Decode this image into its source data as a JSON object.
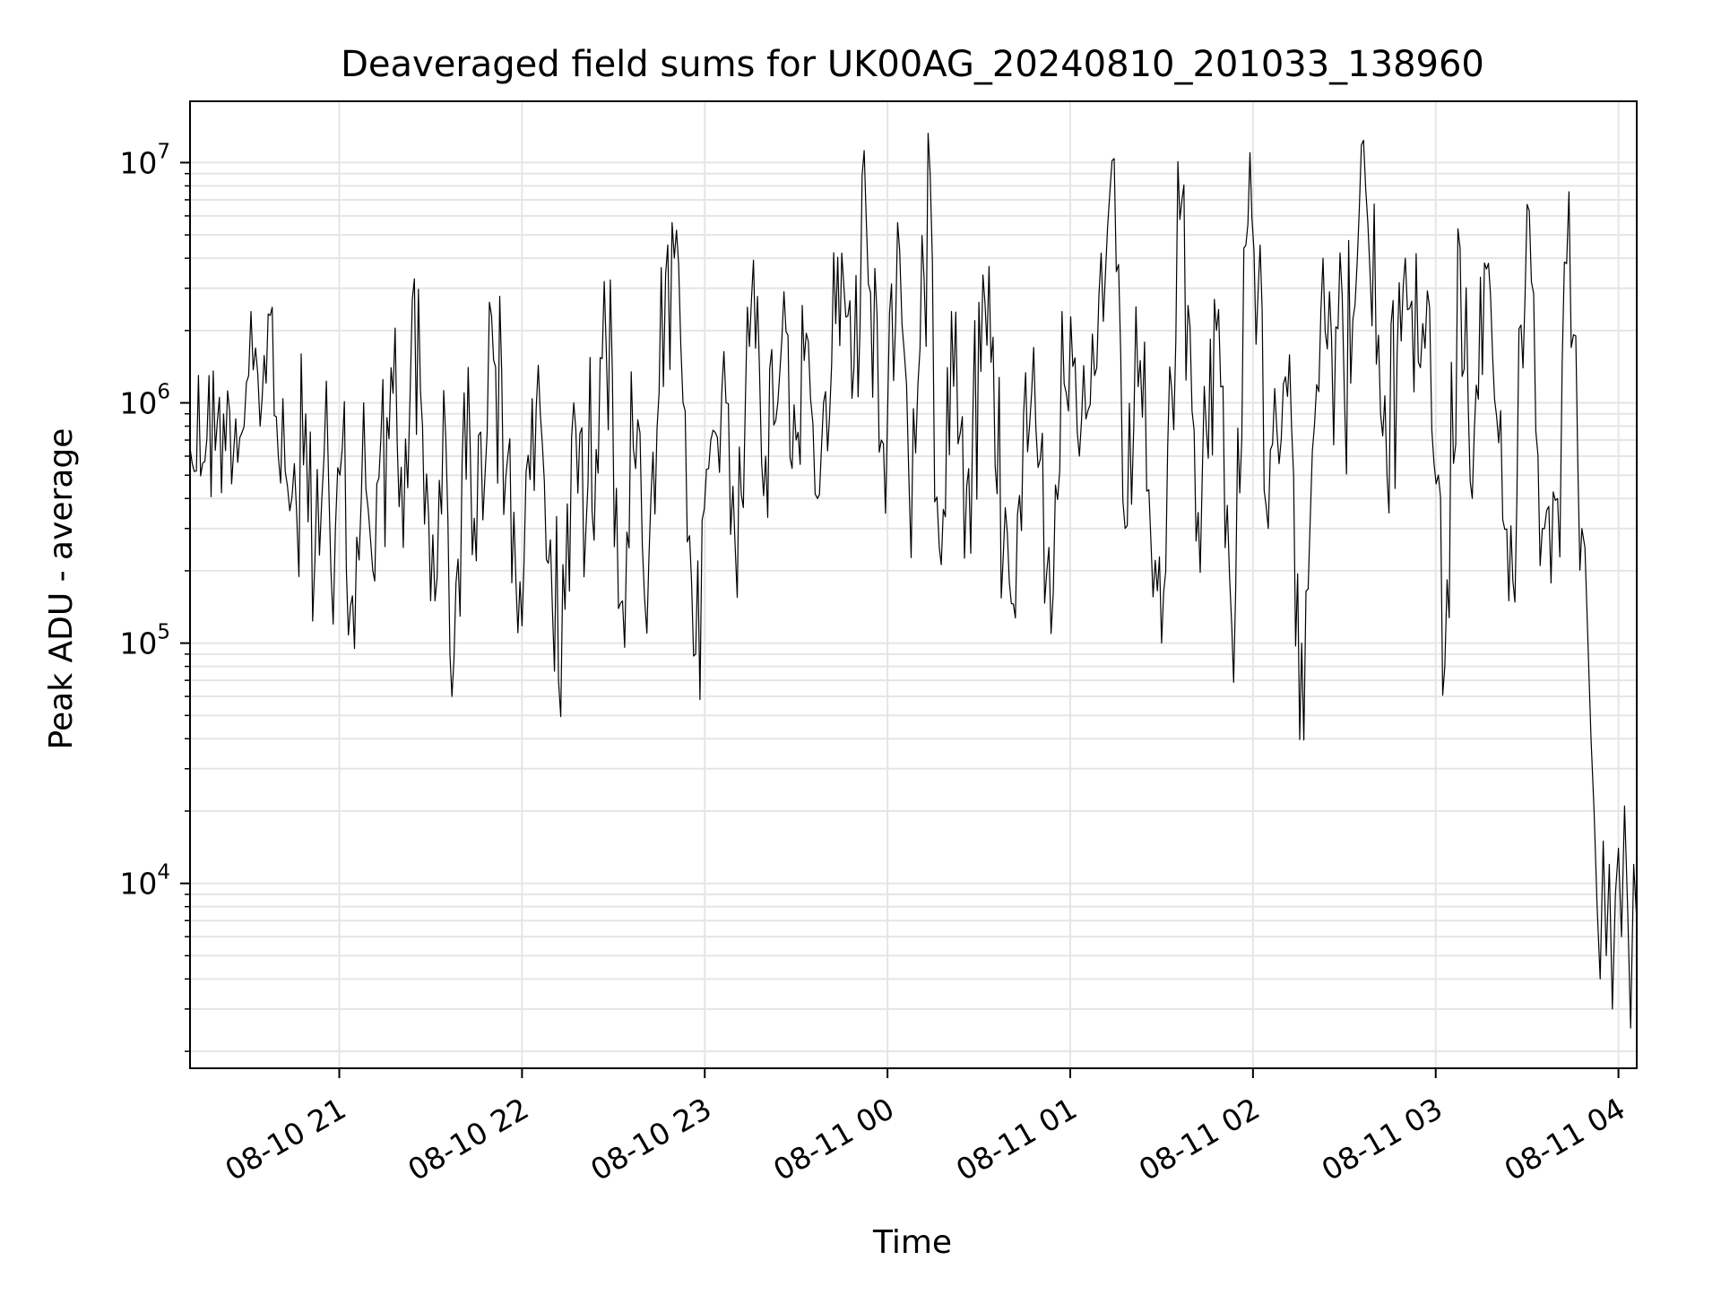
{
  "chart_data": {
    "type": "line",
    "title": "Deaveraged field sums for UK00AG_20240810_201033_138960",
    "xlabel": "Time",
    "ylabel": "Peak ADU - average",
    "y_scale": "log",
    "x_range": [
      "2024-08-10 20:11",
      "2024-08-11 04:06"
    ],
    "ylim": [
      1700,
      18000000
    ],
    "grid": true,
    "line_color": "#000000",
    "grid_color": "#e5e5e5",
    "x_ticks": [
      {
        "value": "2024-08-10 21:00",
        "label": "08-10 21"
      },
      {
        "value": "2024-08-10 22:00",
        "label": "08-10 22"
      },
      {
        "value": "2024-08-10 23:00",
        "label": "08-10 23"
      },
      {
        "value": "2024-08-11 00:00",
        "label": "08-11 00"
      },
      {
        "value": "2024-08-11 01:00",
        "label": "08-11 01"
      },
      {
        "value": "2024-08-11 02:00",
        "label": "08-11 02"
      },
      {
        "value": "2024-08-11 03:00",
        "label": "08-11 03"
      },
      {
        "value": "2024-08-11 04:00",
        "label": "08-11 04"
      }
    ],
    "y_ticks": [
      {
        "value": 10000,
        "base": "10",
        "exp": "4"
      },
      {
        "value": 100000,
        "base": "10",
        "exp": "5"
      },
      {
        "value": 1000000,
        "base": "10",
        "exp": "6"
      },
      {
        "value": 10000000,
        "base": "10",
        "exp": "7"
      }
    ],
    "series": [
      {
        "x": [
          "2024-08-10 20:11",
          "2024-08-10 20:20",
          "2024-08-10 20:28",
          "2024-08-10 20:31",
          "2024-08-10 20:34",
          "2024-08-10 20:38",
          "2024-08-10 20:40",
          "2024-08-10 20:43",
          "2024-08-10 20:46",
          "2024-08-10 20:49",
          "2024-08-10 20:52",
          "2024-08-10 20:55",
          "2024-08-10 20:58",
          "2024-08-10 21:01",
          "2024-08-10 21:05",
          "2024-08-10 21:08",
          "2024-08-10 21:11",
          "2024-08-10 21:17",
          "2024-08-10 21:21",
          "2024-08-10 21:24",
          "2024-08-10 21:30",
          "2024-08-10 21:35",
          "2024-08-10 21:37",
          "2024-08-10 21:41",
          "2024-08-10 21:45",
          "2024-08-10 21:50",
          "2024-08-10 21:58",
          "2024-08-10 22:06",
          "2024-08-10 22:12",
          "2024-08-10 22:17",
          "2024-08-10 22:21",
          "2024-08-10 22:27",
          "2024-08-10 22:33",
          "2024-08-10 22:38",
          "2024-08-10 22:41",
          "2024-08-10 22:45",
          "2024-08-10 22:50",
          "2024-08-10 22:55",
          "2024-08-10 22:57",
          "2024-08-10 23:02",
          "2024-08-10 23:07",
          "2024-08-10 23:10",
          "2024-08-10 23:14",
          "2024-08-10 23:20",
          "2024-08-10 23:26",
          "2024-08-10 23:30",
          "2024-08-10 23:34",
          "2024-08-10 23:37",
          "2024-08-10 23:41",
          "2024-08-10 23:45",
          "2024-08-10 23:49",
          "2024-08-10 23:53",
          "2024-08-10 23:58",
          "2024-08-11 00:04",
          "2024-08-11 00:07",
          "2024-08-11 00:10",
          "2024-08-11 00:14",
          "2024-08-11 00:17",
          "2024-08-11 00:21",
          "2024-08-11 00:26",
          "2024-08-11 00:32",
          "2024-08-11 00:40",
          "2024-08-11 00:48",
          "2024-08-11 00:53",
          "2024-08-11 00:58",
          "2024-08-11 01:03",
          "2024-08-11 01:08",
          "2024-08-11 01:13",
          "2024-08-11 01:18",
          "2024-08-11 01:23",
          "2024-08-11 01:30",
          "2024-08-11 01:36",
          "2024-08-11 01:42",
          "2024-08-11 01:48",
          "2024-08-11 01:53",
          "2024-08-11 01:59",
          "2024-08-11 02:05",
          "2024-08-11 02:10",
          "2024-08-11 02:16",
          "2024-08-11 02:23",
          "2024-08-11 02:30",
          "2024-08-11 02:37",
          "2024-08-11 02:44",
          "2024-08-11 02:50",
          "2024-08-11 02:55",
          "2024-08-11 02:58",
          "2024-08-11 03:03",
          "2024-08-11 03:08",
          "2024-08-11 03:12",
          "2024-08-11 03:18",
          "2024-08-11 03:24",
          "2024-08-11 03:30",
          "2024-08-11 03:35",
          "2024-08-11 03:40",
          "2024-08-11 03:43",
          "2024-08-11 03:46",
          "2024-08-11 03:48",
          "2024-08-11 03:49",
          "2024-08-11 03:50",
          "2024-08-11 03:51",
          "2024-08-11 03:52",
          "2024-08-11 03:53",
          "2024-08-11 03:54",
          "2024-08-11 03:55",
          "2024-08-11 03:56",
          "2024-08-11 03:57",
          "2024-08-11 03:58",
          "2024-08-11 03:59",
          "2024-08-11 04:00",
          "2024-08-11 04:01",
          "2024-08-11 04:02",
          "2024-08-11 04:03",
          "2024-08-11 04:04",
          "2024-08-11 04:05",
          "2024-08-11 04:06"
        ],
        "y": [
          650000,
          850000,
          750000,
          2400000,
          800000,
          2500000,
          600000,
          450000,
          350000,
          900000,
          220000,
          600000,
          120000,
          650000,
          95000,
          1000000,
          200000,
          1400000,
          250000,
          2700000,
          150000,
          700000,
          60000,
          1100000,
          220000,
          2300000,
          180000,
          900000,
          70000,
          1000000,
          300000,
          3200000,
          150000,
          850000,
          110000,
          1100000,
          4000000,
          280000,
          90000,
          700000,
          1000000,
          250000,
          2500000,
          600000,
          2900000,
          700000,
          1800000,
          400000,
          900000,
          4200000,
          1400000,
          6000000,
          700000,
          4300000,
          500000,
          1200000,
          9000000,
          250000,
          2400000,
          450000,
          2600000,
          180000,
          1700000,
          250000,
          1200000,
          600000,
          1300000,
          7500000,
          300000,
          1500000,
          100000,
          5800000,
          350000,
          2000000,
          120000,
          11000000,
          300000,
          1200000,
          100000,
          4000000,
          1100000,
          7800000,
          500000,
          4000000,
          1400000,
          2500000,
          80000,
          4400000,
          400000,
          2800000,
          150000,
          6700000,
          300000,
          400000,
          3800000,
          1900000,
          300000,
          250000,
          100000,
          40000,
          20000,
          8000,
          4000,
          15000,
          5000,
          12000,
          3000,
          9000,
          14000,
          6000,
          21000,
          8000,
          2500,
          12000,
          7000
        ]
      }
    ]
  }
}
